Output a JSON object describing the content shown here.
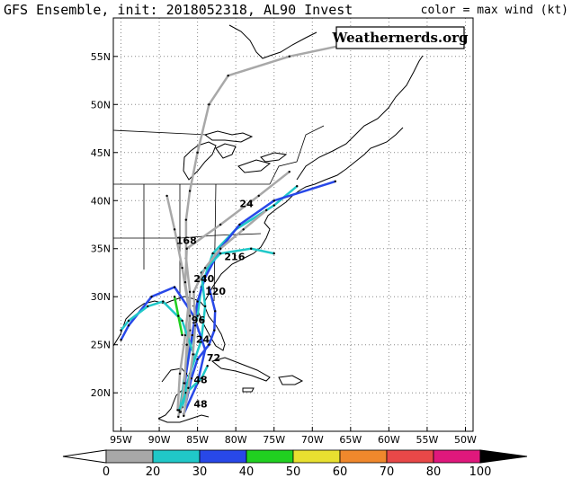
{
  "header": {
    "title": "GFS Ensemble, init: 2018052318, AL90 Invest",
    "legend_caption": "color = max wind (kt)"
  },
  "watermark": "Weathernerds.org",
  "map": {
    "lon_range": [
      -96,
      -49
    ],
    "lat_range": [
      16,
      59
    ],
    "lon_ticks": [
      "95W",
      "90W",
      "85W",
      "80W",
      "75W",
      "70W",
      "65W",
      "60W",
      "55W",
      "50W"
    ],
    "lat_ticks": [
      "55N",
      "50N",
      "45N",
      "40N",
      "35N",
      "30N",
      "25N",
      "20N"
    ],
    "grid": "dotted",
    "hour_labels": [
      "168",
      "216",
      "96",
      "24",
      "48",
      "48",
      "240",
      "120",
      "72",
      "24"
    ]
  },
  "colorbar": {
    "labels": [
      "0",
      "20",
      "30",
      "40",
      "50",
      "60",
      "70",
      "80",
      "100"
    ],
    "colors": [
      "#a8a8a8",
      "#20c8c8",
      "#2848e8",
      "#20d020",
      "#e8e030",
      "#f0882c",
      "#e84848",
      "#e0187c"
    ],
    "units": "kt"
  },
  "tracks": [
    {
      "color": "gray",
      "points": [
        [
          -87.5,
          17.5
        ],
        [
          -87,
          20
        ],
        [
          -86.5,
          23
        ],
        [
          -86,
          26.5
        ],
        [
          -86,
          30.5
        ],
        [
          -86.5,
          34
        ],
        [
          -86.5,
          38
        ],
        [
          -86,
          41
        ],
        [
          -85,
          45
        ],
        [
          -83.5,
          50
        ],
        [
          -81,
          53
        ],
        [
          -73,
          55
        ],
        [
          -64,
          56.5
        ]
      ]
    },
    {
      "color": "cyan",
      "points": [
        [
          -87.3,
          18
        ],
        [
          -86.8,
          21
        ],
        [
          -86,
          24.5
        ],
        [
          -85,
          28
        ],
        [
          -84.5,
          31
        ],
        [
          -83,
          34.5
        ],
        [
          -80,
          37
        ],
        [
          -75,
          39.5
        ],
        [
          -72,
          41.5
        ]
      ]
    },
    {
      "color": "blue",
      "points": [
        [
          -87,
          18.5
        ],
        [
          -86.5,
          22
        ],
        [
          -85.7,
          26
        ],
        [
          -85,
          29.5
        ],
        [
          -84,
          32
        ],
        [
          -82,
          35
        ],
        [
          -79.5,
          37.5
        ],
        [
          -75,
          40
        ],
        [
          -67,
          42
        ]
      ]
    },
    {
      "color": "gray",
      "points": [
        [
          -87.6,
          18.2
        ],
        [
          -87.3,
          22
        ],
        [
          -86.6,
          26
        ],
        [
          -86.2,
          29
        ],
        [
          -87,
          33
        ],
        [
          -88,
          37
        ],
        [
          -89,
          40.5
        ]
      ]
    },
    {
      "color": "cyan",
      "points": [
        [
          -87,
          19
        ],
        [
          -86,
          22
        ],
        [
          -84.5,
          25.5
        ],
        [
          -84,
          29
        ],
        [
          -84.5,
          32.5
        ],
        [
          -82,
          34.5
        ],
        [
          -78,
          35
        ],
        [
          -75,
          34.5
        ]
      ]
    },
    {
      "color": "blue",
      "points": [
        [
          -86.8,
          17.8
        ],
        [
          -85,
          21
        ],
        [
          -84,
          24.5
        ],
        [
          -85.5,
          28
        ],
        [
          -88,
          31
        ],
        [
          -91,
          30
        ],
        [
          -94,
          27
        ],
        [
          -95,
          25.5
        ]
      ]
    },
    {
      "color": "cyan",
      "points": [
        [
          -87,
          18.5
        ],
        [
          -86,
          21.5
        ],
        [
          -85.5,
          24
        ],
        [
          -87,
          27.5
        ],
        [
          -89.5,
          29.5
        ],
        [
          -91.5,
          29
        ],
        [
          -94,
          27.5
        ],
        [
          -95,
          26.5
        ]
      ]
    },
    {
      "color": "gray",
      "points": [
        [
          -87.2,
          18
        ],
        [
          -86.7,
          21
        ],
        [
          -86.4,
          25
        ],
        [
          -86,
          28
        ],
        [
          -86.6,
          31.5
        ],
        [
          -86.4,
          35
        ],
        [
          -82,
          37.5
        ],
        [
          -77,
          40.5
        ],
        [
          -73,
          43
        ]
      ]
    },
    {
      "color": "green",
      "points": [
        [
          -87,
          26
        ],
        [
          -87.5,
          28
        ],
        [
          -88,
          30
        ]
      ]
    },
    {
      "color": "blue",
      "points": [
        [
          -86.5,
          19
        ],
        [
          -85.8,
          21.5
        ],
        [
          -85,
          23.5
        ],
        [
          -83.5,
          25
        ],
        [
          -82.8,
          26.5
        ],
        [
          -82.7,
          28.5
        ],
        [
          -83.5,
          31
        ]
      ]
    },
    {
      "color": "cyan",
      "points": [
        [
          -87.4,
          18.2
        ],
        [
          -86.5,
          20
        ],
        [
          -84.5,
          21.5
        ],
        [
          -83.7,
          22.8
        ]
      ]
    },
    {
      "color": "gray",
      "points": [
        [
          -86.8,
          17.6
        ],
        [
          -86.2,
          20.5
        ],
        [
          -85.6,
          24
        ],
        [
          -85.3,
          27
        ],
        [
          -85.5,
          30.5
        ],
        [
          -84,
          33
        ],
        [
          -82,
          35
        ],
        [
          -79,
          37
        ],
        [
          -76,
          39
        ]
      ]
    }
  ]
}
